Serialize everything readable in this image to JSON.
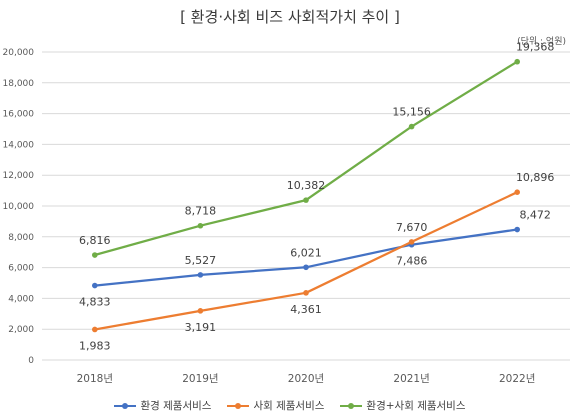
{
  "chart_data": {
    "type": "line",
    "title": "[ 환경·사회 비즈 사회적가치 추이 ]",
    "unit_note": "(단위 : 억원)",
    "categories": [
      "2018년",
      "2019년",
      "2020년",
      "2021년",
      "2022년"
    ],
    "ylim": [
      0,
      20000
    ],
    "yticks": [
      "0",
      "2,000",
      "4,000",
      "6,000",
      "8,000",
      "10,000",
      "12,000",
      "14,000",
      "16,000",
      "18,000",
      "20,000"
    ],
    "grid": true,
    "legend_position": "bottom",
    "series": [
      {
        "name": "환경 제품서비스",
        "color": "#4472c4",
        "values": [
          4833,
          5527,
          6021,
          7486,
          8472
        ],
        "labels": [
          "4,833",
          "5,527",
          "6,021",
          "7,486",
          "8,472"
        ]
      },
      {
        "name": "사회 제품서비스",
        "color": "#ed7d31",
        "values": [
          1983,
          3191,
          4361,
          7670,
          10896
        ],
        "labels": [
          "1,983",
          "3,191",
          "4,361",
          "7,670",
          "10,896"
        ]
      },
      {
        "name": "환경+사회 제품서비스",
        "color": "#70ad47",
        "values": [
          6816,
          8718,
          10382,
          15156,
          19368
        ],
        "labels": [
          "6,816",
          "8,718",
          "10,382",
          "15,156",
          "19,368"
        ]
      }
    ]
  }
}
